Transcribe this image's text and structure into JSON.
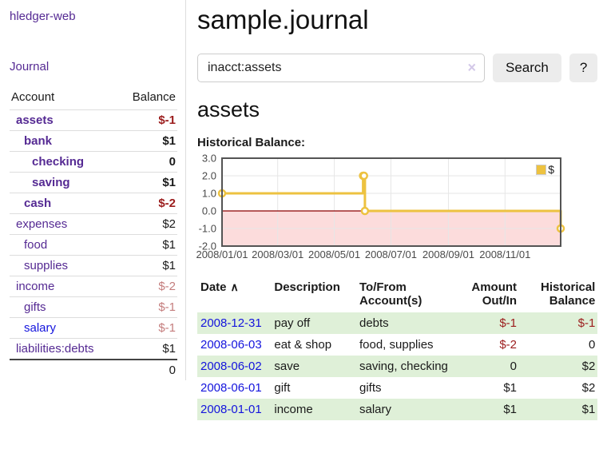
{
  "colors": {
    "link_purple": "#552a93",
    "link_blue": "#1414dd",
    "negative_strong": "#9b1c1c",
    "negative_soft": "#c47d7d",
    "row_stripe_green": "#dff0d8",
    "series_yellow": "#edc240"
  },
  "sidebar": {
    "app_title": "hledger-web",
    "journal_link": "Journal",
    "accounts_header": {
      "account": "Account",
      "balance": "Balance"
    },
    "accounts": [
      {
        "label": "assets",
        "row_class": "d1 cur",
        "balance": "$-1",
        "balance_class": "neg"
      },
      {
        "label": "bank",
        "row_class": "d2 cur",
        "balance": "$1"
      },
      {
        "label": "checking",
        "row_class": "d3 cur",
        "balance": "0"
      },
      {
        "label": "saving",
        "row_class": "d3 cur",
        "balance": "$1"
      },
      {
        "label": "cash",
        "row_class": "d2 cur",
        "balance": "$-2",
        "balance_class": "neg"
      },
      {
        "label": "expenses",
        "row_class": "d1",
        "balance": "$2"
      },
      {
        "label": "food",
        "row_class": "d2",
        "balance": "$1"
      },
      {
        "label": "supplies",
        "row_class": "d2",
        "balance": "$1"
      },
      {
        "label": "income",
        "row_class": "d1",
        "balance": "$-2",
        "balance_class": "negl"
      },
      {
        "label": "gifts",
        "row_class": "d2",
        "balance": "$-1",
        "balance_class": "negl"
      },
      {
        "label": "salary",
        "row_class": "d2",
        "balance": "$-1",
        "balance_class": "negl",
        "link_class": "blue"
      },
      {
        "label": "liabilities:debts",
        "row_class": "d1",
        "balance": "$1"
      }
    ],
    "total": "0"
  },
  "main": {
    "title": "sample.journal",
    "search": {
      "query": "inacct:assets",
      "clear_icon": "×",
      "button_label": "Search",
      "help_label": "?"
    },
    "account_heading": "assets",
    "register": {
      "headers": {
        "date": "Date",
        "description": "Description",
        "accounts": "To/From Account(s)",
        "amount": "Amount Out/In",
        "balance": "Historical Balance"
      },
      "sort_icon": "∧",
      "rows": [
        {
          "date": "2008-12-31",
          "description": "pay off",
          "accounts": "debts",
          "amount": "$-1",
          "amount_class": "neg",
          "balance": "$-1",
          "balance_class": "neg"
        },
        {
          "date": "2008-06-03",
          "description": "eat & shop",
          "accounts": "food, supplies",
          "amount": "$-2",
          "amount_class": "neg",
          "balance": "0"
        },
        {
          "date": "2008-06-02",
          "description": "save",
          "accounts": "saving, checking",
          "amount": "0",
          "balance": "$2"
        },
        {
          "date": "2008-06-01",
          "description": "gift",
          "accounts": "gifts",
          "amount": "$1",
          "balance": "$2"
        },
        {
          "date": "2008-01-01",
          "description": "income",
          "accounts": "salary",
          "amount": "$1",
          "balance": "$1"
        }
      ]
    }
  },
  "chart_data": {
    "type": "line",
    "title": "Historical Balance:",
    "x_range": [
      "2008-01-01",
      "2008-12-31"
    ],
    "ylim": [
      -2,
      3
    ],
    "series": [
      {
        "name": "$",
        "color": "#edc240",
        "steps": true,
        "points": [
          [
            "2008-01-01",
            1
          ],
          [
            "2008-06-01",
            2
          ],
          [
            "2008-06-02",
            2
          ],
          [
            "2008-06-03",
            0
          ],
          [
            "2008-12-31",
            -1
          ]
        ]
      }
    ],
    "yticks": [
      {
        "value": 3,
        "label": "3.0"
      },
      {
        "value": 2,
        "label": "2.0"
      },
      {
        "value": 1,
        "label": "1.0"
      },
      {
        "value": 0,
        "label": "0.0"
      },
      {
        "value": -1,
        "label": "-1.0"
      },
      {
        "value": -2,
        "label": "-2.0"
      }
    ],
    "xticks": [
      {
        "date": "2008-01-01",
        "label": "2008/01/01"
      },
      {
        "date": "2008-03-01",
        "label": "2008/03/01"
      },
      {
        "date": "2008-05-01",
        "label": "2008/05/01"
      },
      {
        "date": "2008-07-01",
        "label": "2008/07/01"
      },
      {
        "date": "2008-09-01",
        "label": "2008/09/01"
      },
      {
        "date": "2008-11-01",
        "label": "2008/11/01"
      }
    ],
    "legend": {
      "label": "$",
      "position": "top-right",
      "swatch_color": "#edc240"
    },
    "grid": {
      "grid_color": "#e6e6e6",
      "border_color": "#545454",
      "zero_line_color": "#8b0000",
      "negative_region_color": "#fcdcdc"
    }
  }
}
